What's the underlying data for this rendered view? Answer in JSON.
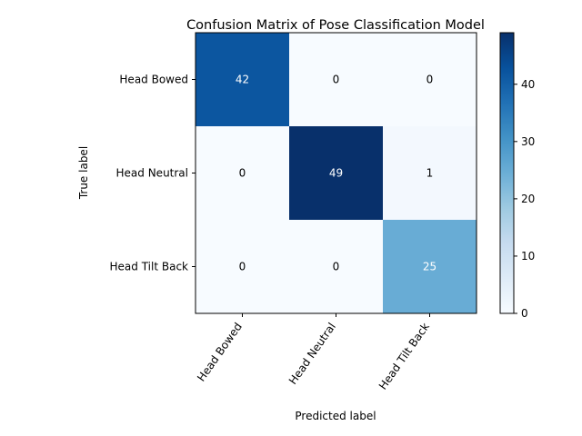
{
  "chart_data": {
    "type": "heatmap",
    "title": "Confusion Matrix of Pose Classification Model",
    "xlabel": "Predicted label",
    "ylabel": "True label",
    "x_categories": [
      "Head Bowed",
      "Head Neutral",
      "Head Tilt Back"
    ],
    "y_categories": [
      "Head Bowed",
      "Head Neutral",
      "Head Tilt Back"
    ],
    "values": [
      [
        42,
        0,
        0
      ],
      [
        0,
        49,
        1
      ],
      [
        0,
        0,
        25
      ]
    ],
    "colormap": "Blues",
    "colorbar": {
      "range": [
        0,
        49
      ],
      "ticks": [
        0,
        10,
        20,
        30,
        40
      ]
    }
  }
}
